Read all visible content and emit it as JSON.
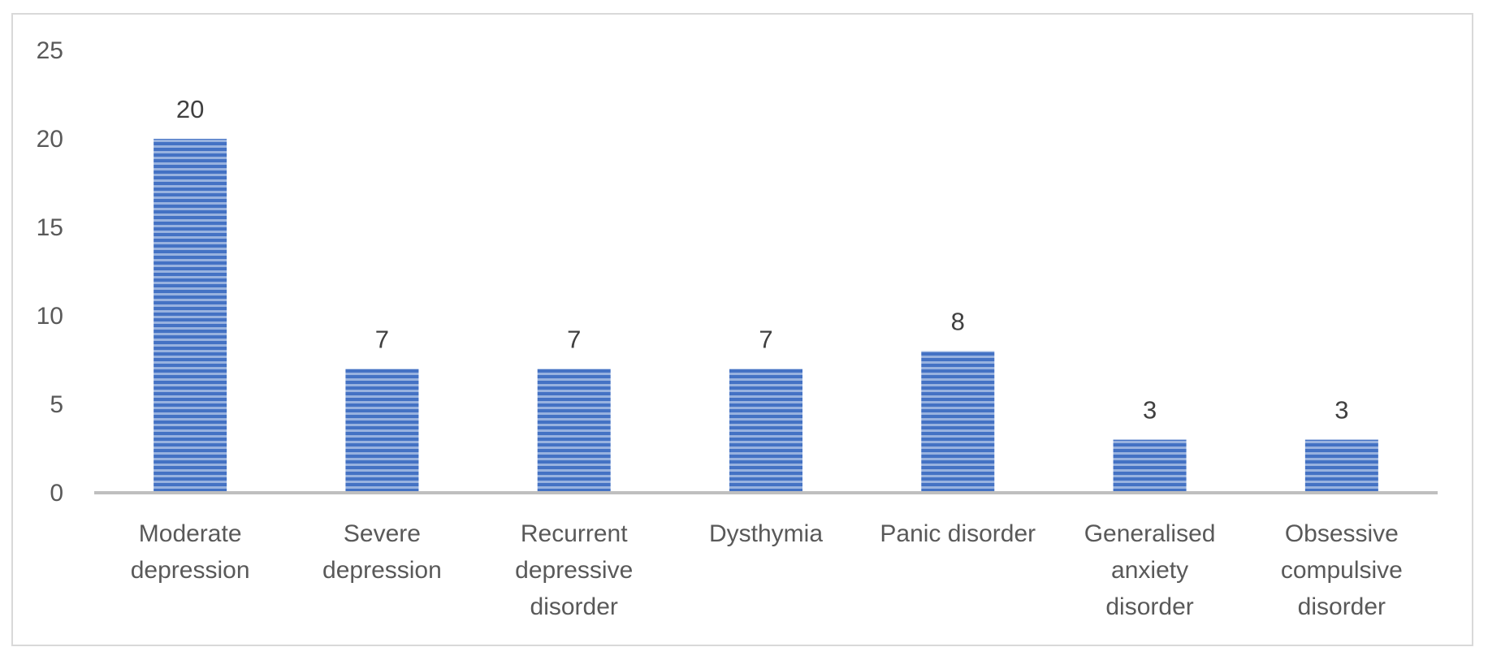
{
  "chart_data": {
    "type": "bar",
    "categories": [
      [
        "Moderate",
        "depression"
      ],
      [
        "Severe",
        "depression"
      ],
      [
        "Recurrent",
        "depressive",
        "disorder"
      ],
      [
        "Dysthymia"
      ],
      [
        "Panic disorder"
      ],
      [
        "Generalised",
        "anxiety",
        "disorder"
      ],
      [
        "Obsessive",
        "compulsive",
        "disorder"
      ]
    ],
    "values": [
      20,
      7,
      7,
      7,
      8,
      3,
      3
    ],
    "data_labels": [
      "20",
      "7",
      "7",
      "7",
      "8",
      "3",
      "3"
    ],
    "y_ticks": [
      "0",
      "5",
      "10",
      "15",
      "20",
      "25"
    ],
    "ylim": [
      0,
      25
    ],
    "title": "",
    "xlabel": "",
    "ylabel": "",
    "grid": false,
    "legend": "none",
    "colors": {
      "bar": "#4472c4",
      "bar_stripe": "#ffffff",
      "axis": "#bfbfbf",
      "tick_text": "#595959",
      "label_text": "#404040",
      "border": "#d9d9d9"
    }
  }
}
